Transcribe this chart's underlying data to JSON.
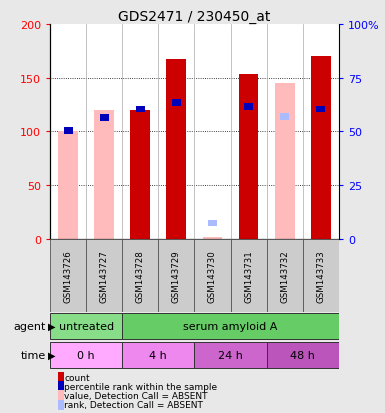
{
  "title": "GDS2471 / 230450_at",
  "samples": [
    "GSM143726",
    "GSM143727",
    "GSM143728",
    "GSM143729",
    "GSM143730",
    "GSM143731",
    "GSM143732",
    "GSM143733"
  ],
  "count_values": [
    0,
    0,
    120,
    167,
    0,
    153,
    0,
    170
  ],
  "percentile_rank": [
    50.5,
    56.5,
    60.5,
    63.5,
    0,
    61.5,
    0,
    60.5
  ],
  "absent_value": [
    100,
    120,
    0,
    0,
    2,
    0,
    145,
    0
  ],
  "absent_rank_pct": [
    50.5,
    56.5,
    0,
    0,
    7.5,
    0,
    57,
    0
  ],
  "ylim_left": [
    0,
    200
  ],
  "ylim_right": [
    0,
    100
  ],
  "left_ticks": [
    0,
    50,
    100,
    150,
    200
  ],
  "right_ticks": [
    0,
    25,
    50,
    75,
    100
  ],
  "left_tick_labels": [
    "0",
    "50",
    "100",
    "150",
    "200"
  ],
  "right_tick_labels": [
    "0",
    "25",
    "50",
    "75",
    "100%"
  ],
  "color_count": "#cc0000",
  "color_rank": "#0000bb",
  "color_absent_value": "#ffbbbb",
  "color_absent_rank": "#aabbff",
  "agent_groups": [
    {
      "label": "untreated",
      "start": 0,
      "end": 2,
      "color": "#88dd88"
    },
    {
      "label": "serum amyloid A",
      "start": 2,
      "end": 8,
      "color": "#66cc66"
    }
  ],
  "time_groups": [
    {
      "label": "0 h",
      "start": 0,
      "end": 2,
      "color": "#ffaaff"
    },
    {
      "label": "4 h",
      "start": 2,
      "end": 4,
      "color": "#ee88ee"
    },
    {
      "label": "24 h",
      "start": 4,
      "end": 6,
      "color": "#cc66cc"
    },
    {
      "label": "48 h",
      "start": 6,
      "end": 8,
      "color": "#bb55bb"
    }
  ],
  "bg_color": "#e8e8e8",
  "plot_bg": "#ffffff",
  "title_size": 10,
  "bar_width": 0.55
}
